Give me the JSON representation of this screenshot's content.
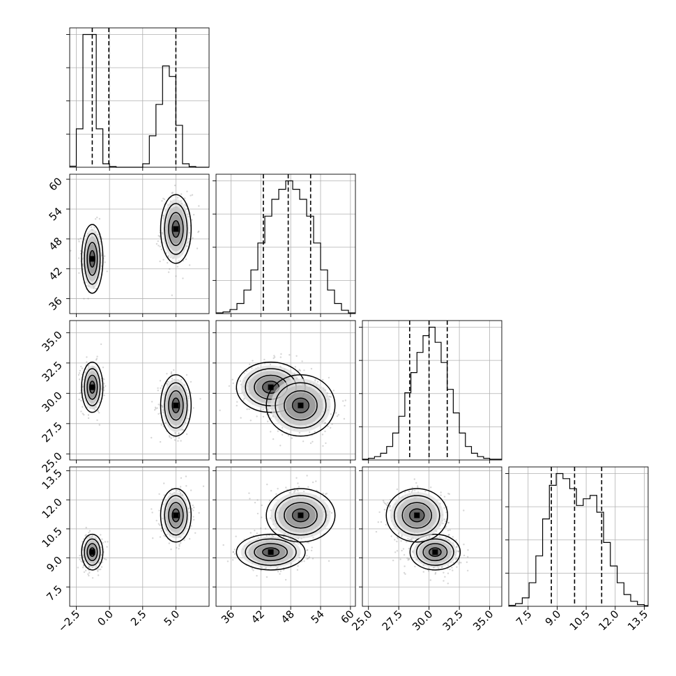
{
  "chart_data": {
    "type": "corner",
    "title": "",
    "parameters": [
      {
        "lim": [
          -3,
          7.5
        ],
        "ticks": [
          -2.5,
          0.0,
          2.5,
          5.0
        ],
        "tick_labels": [
          "−2.5",
          "0.0",
          "2.5",
          "5.0"
        ],
        "quantiles": [
          -1.3,
          -0.05,
          5.0
        ],
        "histogram": {
          "edges": [
            -3.0,
            -2.5,
            -2.0,
            -1.5,
            -1.0,
            -0.5,
            0.0,
            0.5,
            1.0,
            1.5,
            2.0,
            2.5,
            3.0,
            3.5,
            4.0,
            4.5,
            5.0,
            5.5,
            6.0,
            6.5,
            7.0,
            7.5
          ],
          "counts": [
            0.03,
            1.1,
            3.8,
            3.8,
            1.1,
            0.1,
            0.02,
            0.0,
            0.0,
            0.0,
            0.0,
            0.1,
            0.9,
            1.8,
            2.9,
            2.6,
            1.2,
            0.1,
            0.02,
            0.0,
            0.0
          ]
        }
      },
      {
        "lim": [
          33,
          61
        ],
        "ticks": [
          36,
          42,
          48,
          54,
          60
        ],
        "tick_labels": [
          "36",
          "42",
          "48",
          "54",
          "60"
        ],
        "quantiles": [
          42.5,
          47.5,
          52.0
        ],
        "histogram": {
          "edges": [
            33,
            34.4,
            35.8,
            37.2,
            38.6,
            40.0,
            41.4,
            42.8,
            44.2,
            45.6,
            47.0,
            48.4,
            49.8,
            51.2,
            52.6,
            54.0,
            55.4,
            56.8,
            58.2,
            59.6,
            61.0
          ],
          "counts": [
            0.02,
            0.05,
            0.12,
            0.3,
            0.7,
            1.3,
            2.1,
            2.9,
            3.4,
            3.7,
            3.95,
            3.7,
            3.4,
            2.9,
            2.1,
            1.3,
            0.7,
            0.3,
            0.1,
            0.02
          ]
        }
      },
      {
        "lim": [
          24.5,
          36
        ],
        "ticks": [
          25.0,
          27.5,
          30.0,
          32.5,
          35.0
        ],
        "tick_labels": [
          "25.0",
          "27.5",
          "30.0",
          "32.5",
          "35.0"
        ],
        "quantiles": [
          28.4,
          30.0,
          31.5
        ],
        "histogram": {
          "edges": [
            24.5,
            25.0,
            25.5,
            26.0,
            26.5,
            27.0,
            27.5,
            28.0,
            28.5,
            29.0,
            29.5,
            30.0,
            30.5,
            31.0,
            31.5,
            32.0,
            32.5,
            33.0,
            33.5,
            34.0,
            34.5,
            35.0,
            36.0
          ],
          "counts": [
            0.02,
            0.05,
            0.1,
            0.2,
            0.4,
            0.8,
            1.3,
            2.0,
            2.6,
            3.2,
            3.7,
            3.95,
            3.5,
            2.9,
            2.1,
            1.4,
            0.8,
            0.4,
            0.2,
            0.1,
            0.05,
            0.02
          ]
        }
      },
      {
        "lim": [
          6.5,
          13.7
        ],
        "ticks": [
          7.5,
          9.0,
          10.5,
          12.0,
          13.5
        ],
        "tick_labels": [
          "7.5",
          "9.0",
          "10.5",
          "12.0",
          "13.5"
        ],
        "quantiles": [
          8.7,
          9.9,
          11.3
        ],
        "histogram": {
          "edges": [
            6.5,
            6.85,
            7.2,
            7.55,
            7.9,
            8.25,
            8.6,
            8.95,
            9.3,
            9.65,
            10.0,
            10.35,
            10.7,
            11.05,
            11.4,
            11.75,
            12.1,
            12.45,
            12.8,
            13.15,
            13.5,
            13.7
          ],
          "counts": [
            0.03,
            0.08,
            0.25,
            0.7,
            1.5,
            2.6,
            3.6,
            3.95,
            3.8,
            3.5,
            3.0,
            3.2,
            3.3,
            2.8,
            1.9,
            1.2,
            0.7,
            0.35,
            0.15,
            0.05,
            0.02
          ]
        }
      }
    ],
    "modes": [
      {
        "center": [
          -1.3,
          44.0,
          30.5,
          9.3
        ],
        "sd": [
          0.35,
          3.0,
          0.9,
          0.4
        ],
        "weight": 0.5
      },
      {
        "center": [
          5.0,
          50.0,
          29.0,
          11.2
        ],
        "sd": [
          0.5,
          3.0,
          1.1,
          0.6
        ],
        "weight": 0.5
      }
    ],
    "grid": true
  }
}
